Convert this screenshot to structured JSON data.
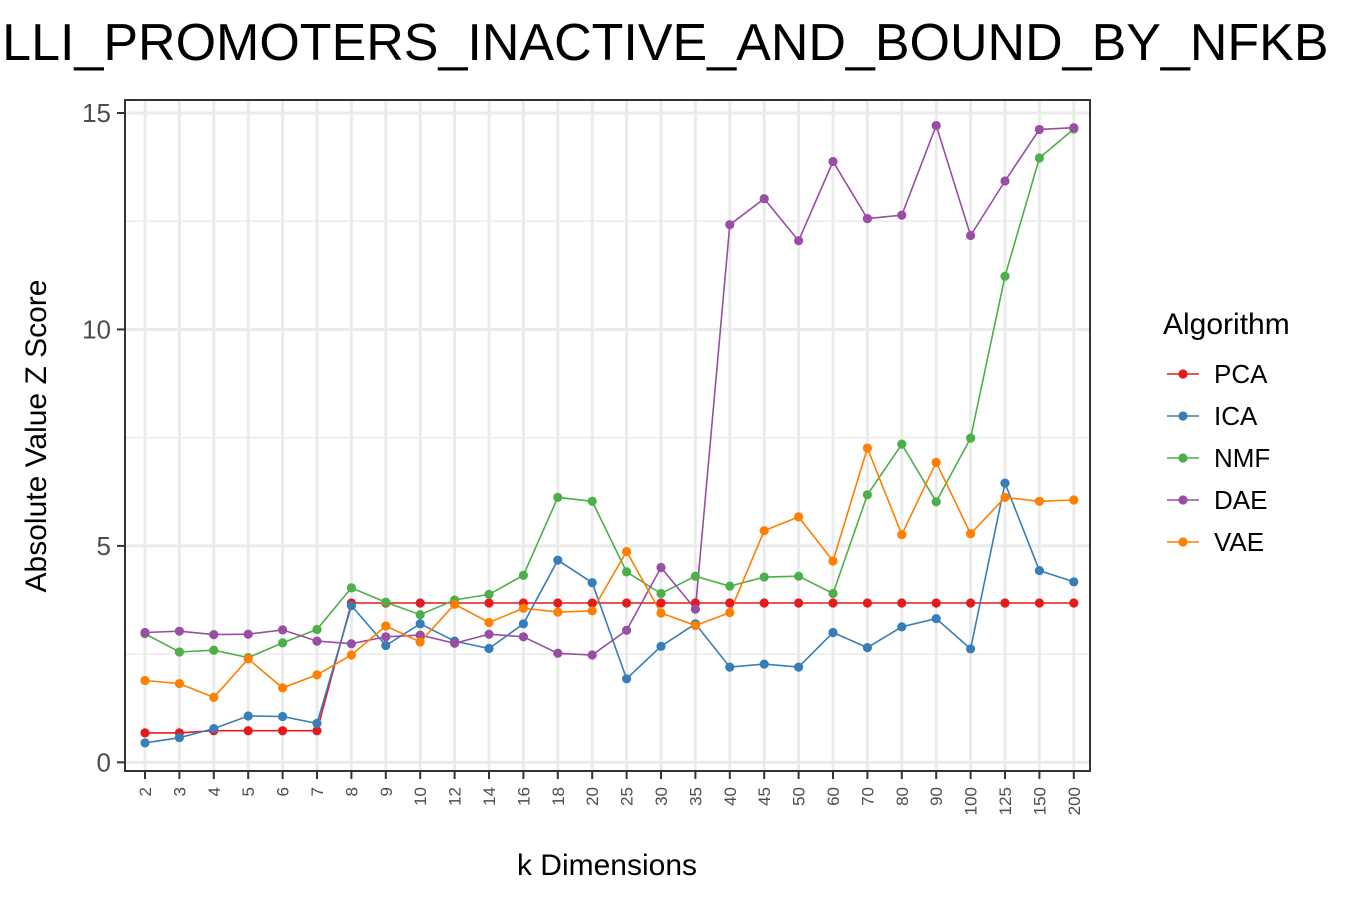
{
  "chart_data": {
    "type": "line",
    "title": "ELLI_PROMOTERS_INACTIVE_AND_BOUND_BY_NFKB",
    "xlabel": "k Dimensions",
    "ylabel": "Absolute Value Z Score",
    "ylim": [
      -0.2,
      15.3
    ],
    "yticks": [
      "0",
      "5",
      "10",
      "15"
    ],
    "grid": true,
    "legend_title": "Algorithm",
    "legend_position": "right",
    "categories": [
      "2",
      "3",
      "4",
      "5",
      "6",
      "7",
      "8",
      "9",
      "10",
      "12",
      "14",
      "16",
      "18",
      "20",
      "25",
      "30",
      "35",
      "40",
      "45",
      "50",
      "60",
      "70",
      "80",
      "90",
      "100",
      "125",
      "150",
      "200"
    ],
    "series": [
      {
        "name": "PCA",
        "color": "#e41a1c",
        "values": [
          0.68,
          0.68,
          0.73,
          0.73,
          0.73,
          0.73,
          3.68,
          3.68,
          3.68,
          3.68,
          3.68,
          3.68,
          3.68,
          3.68,
          3.68,
          3.68,
          3.68,
          3.68,
          3.68,
          3.68,
          3.68,
          3.68,
          3.68,
          3.68,
          3.68,
          3.68,
          3.68,
          3.68
        ]
      },
      {
        "name": "ICA",
        "color": "#377eb8",
        "values": [
          0.45,
          0.57,
          0.78,
          1.07,
          1.06,
          0.9,
          3.62,
          2.7,
          3.2,
          2.8,
          2.63,
          3.2,
          4.67,
          4.15,
          1.93,
          2.68,
          3.2,
          2.2,
          2.27,
          2.2,
          3.0,
          2.65,
          3.13,
          3.32,
          2.62,
          6.45,
          4.43,
          4.17
        ]
      },
      {
        "name": "NMF",
        "color": "#4daf4a",
        "values": [
          2.97,
          2.55,
          2.59,
          2.42,
          2.76,
          3.07,
          4.03,
          3.7,
          3.41,
          3.75,
          3.88,
          4.32,
          6.12,
          6.03,
          4.4,
          3.9,
          4.3,
          4.07,
          4.28,
          4.3,
          3.9,
          6.18,
          7.35,
          6.02,
          7.49,
          11.23,
          13.96,
          14.63
        ]
      },
      {
        "name": "DAE",
        "color": "#984ea3",
        "values": [
          3.0,
          3.03,
          2.95,
          2.96,
          3.06,
          2.8,
          2.74,
          2.9,
          2.94,
          2.75,
          2.96,
          2.9,
          2.52,
          2.48,
          3.05,
          4.5,
          3.54,
          12.42,
          13.02,
          12.05,
          13.88,
          12.56,
          12.64,
          14.71,
          12.17,
          13.43,
          14.62,
          14.66
        ]
      },
      {
        "name": "VAE",
        "color": "#ff7f00",
        "values": [
          1.89,
          1.82,
          1.5,
          2.39,
          1.72,
          2.02,
          2.48,
          3.15,
          2.78,
          3.65,
          3.23,
          3.56,
          3.47,
          3.5,
          4.87,
          3.45,
          3.16,
          3.46,
          5.35,
          5.67,
          4.65,
          7.26,
          5.26,
          6.93,
          5.28,
          6.12,
          6.03,
          6.06
        ]
      }
    ]
  }
}
